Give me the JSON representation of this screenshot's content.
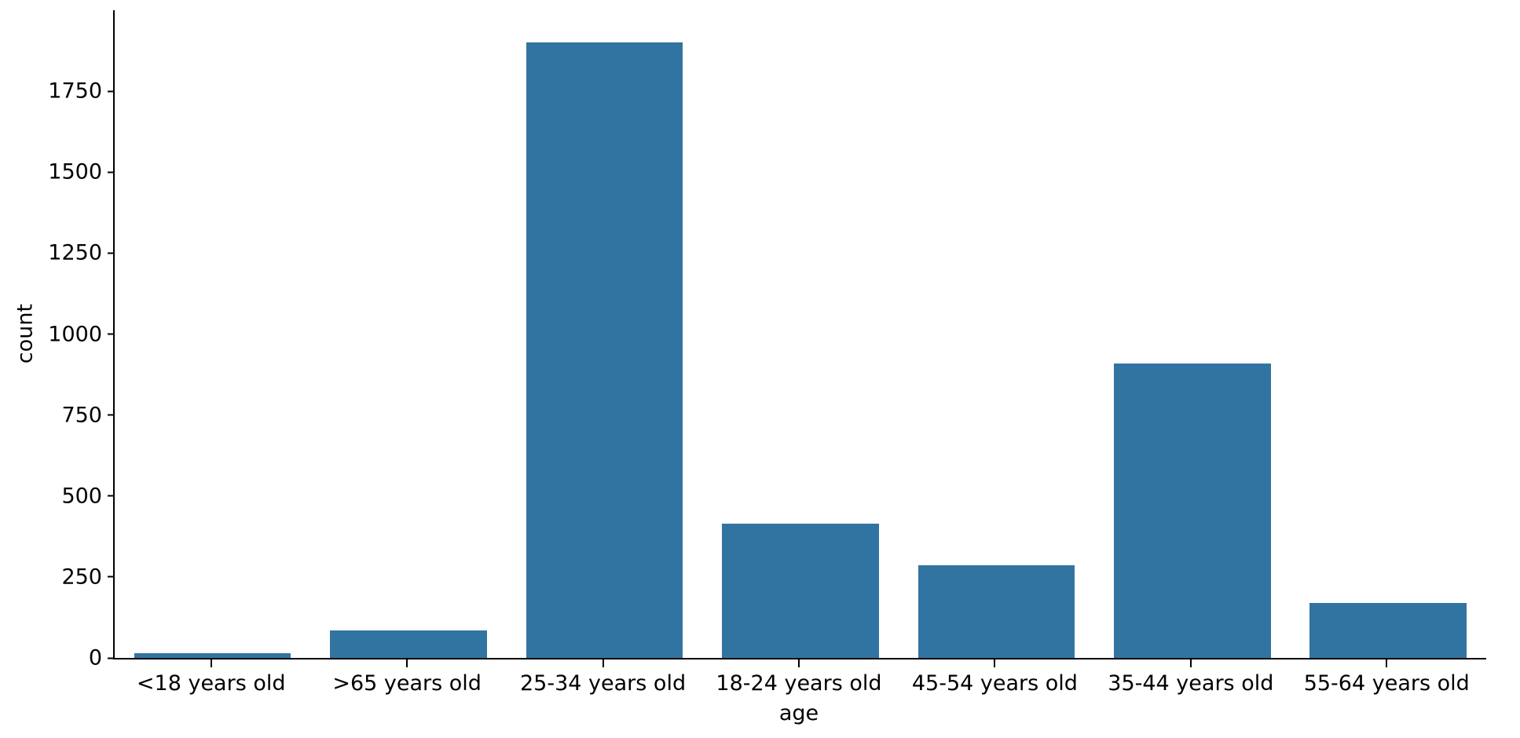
{
  "chart_data": {
    "type": "bar",
    "title": "",
    "xlabel": "age",
    "ylabel": "count",
    "categories": [
      "<18 years old",
      ">65 years old",
      "25-34 years old",
      "18-24 years old",
      "45-54 years old",
      "35-44 years old",
      "55-64 years old"
    ],
    "values": [
      15,
      85,
      1900,
      415,
      285,
      910,
      170
    ],
    "ylim": [
      0,
      2000
    ],
    "yticks": [
      0,
      250,
      500,
      750,
      1000,
      1250,
      1500,
      1750
    ],
    "grid": false,
    "legend": "none",
    "bar_color": "#3274a1",
    "axis_color": "#000000",
    "background_color": "#ffffff"
  }
}
